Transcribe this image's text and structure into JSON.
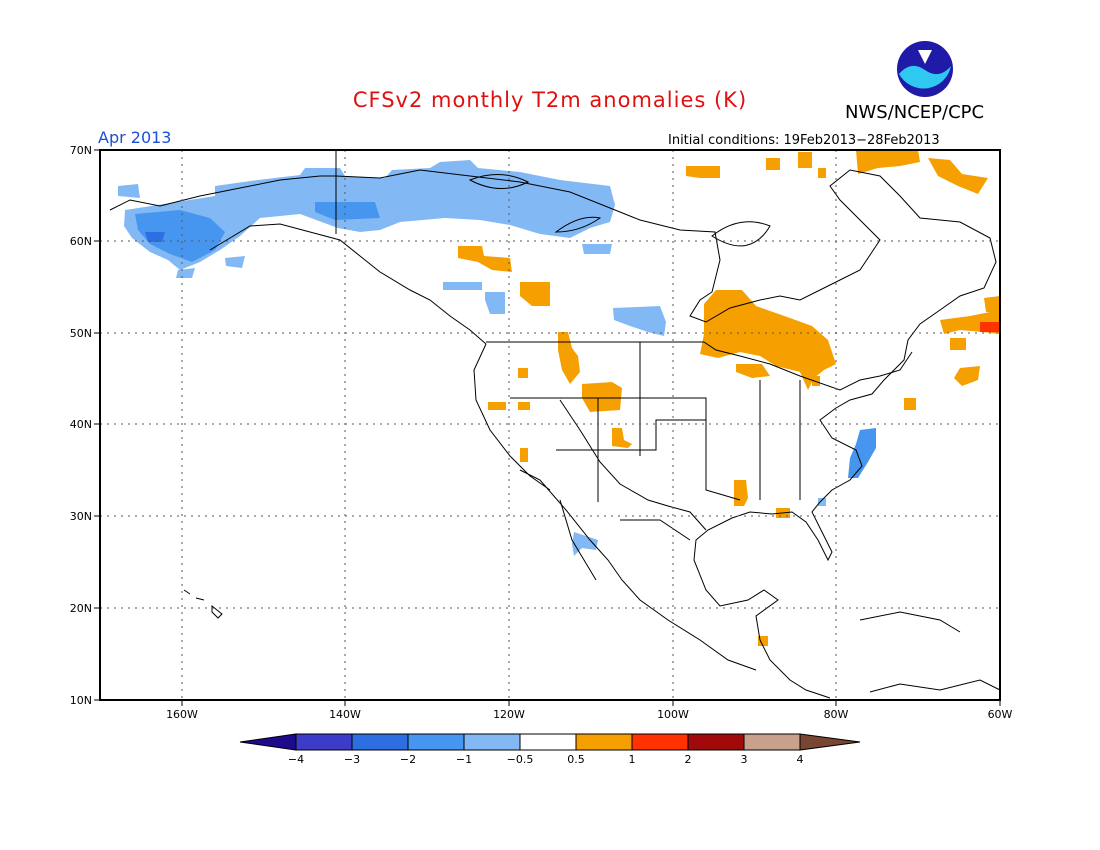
{
  "title": "CFSv2 monthly T2m anomalies (K)",
  "org": "NWS/NCEP/CPC",
  "logo_text": "NOAA",
  "valid_month": "Apr 2013",
  "initial_conditions": "Initial conditions: 19Feb2013−28Feb2013",
  "lat_labels": [
    "70N",
    "60N",
    "50N",
    "40N",
    "30N",
    "20N",
    "10N"
  ],
  "lon_labels": [
    "160W",
    "140W",
    "120W",
    "100W",
    "80W",
    "60W"
  ],
  "colorbar": {
    "ticks": [
      "−4",
      "−3",
      "−2",
      "−1",
      "−0.5",
      "0.5",
      "1",
      "2",
      "3",
      "4"
    ],
    "colors": [
      "#1e0a8c",
      "#3c3cc8",
      "#2d6ee0",
      "#4696f0",
      "#82b9f5",
      "#ffffff",
      "#f5a000",
      "#ff3200",
      "#a00a0a",
      "#c8a08c",
      "#784632"
    ]
  },
  "colors": {
    "cold": "#82b9f5",
    "cold_strong": "#4696f0",
    "cold_stronger": "#2d6ee0",
    "warm": "#f5a000",
    "warm_strong": "#ff3200",
    "title": "#e01010",
    "date": "#1a4fd6"
  }
}
